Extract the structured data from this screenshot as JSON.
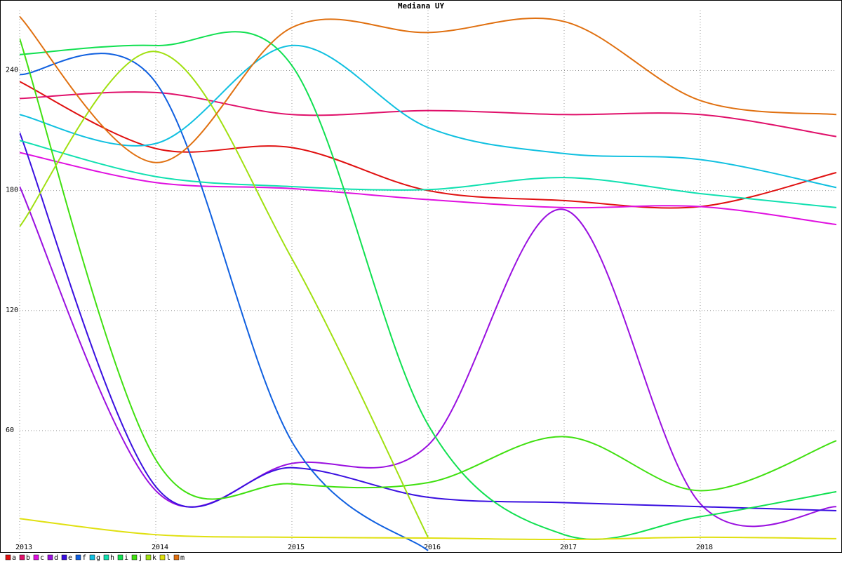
{
  "chart_data": {
    "type": "line",
    "title": "Mediana UY",
    "x": [
      2013,
      2014,
      2015,
      2016,
      2017,
      2018,
      2019
    ],
    "xlim": [
      2013,
      2019
    ],
    "xticks": [
      2013,
      2014,
      2015,
      2016,
      2017,
      2018
    ],
    "ylim": [
      0,
      270
    ],
    "yticks": [
      60,
      120,
      180,
      240
    ],
    "grid": true,
    "legend": "bottom-left",
    "series": [
      {
        "name": "a",
        "color": "#e01010",
        "values": [
          234.5,
          201,
          201.5,
          180,
          175,
          172,
          189
        ]
      },
      {
        "name": "b",
        "color": "#e0106a",
        "values": [
          226,
          229,
          218,
          220,
          218,
          218,
          207
        ]
      },
      {
        "name": "c",
        "color": "#e010e0",
        "values": [
          199,
          184,
          181,
          175.5,
          171.5,
          172,
          163
        ]
      },
      {
        "name": "d",
        "color": "#9a10e0",
        "values": [
          182,
          30,
          43.6,
          52.7,
          170.5,
          23.5,
          22
        ]
      },
      {
        "name": "e",
        "color": "#3a10e0",
        "values": [
          209,
          32,
          41.5,
          26.7,
          24,
          22,
          20
        ]
      },
      {
        "name": "f",
        "color": "#1060e0",
        "values": [
          238,
          234,
          54.5,
          0,
          null,
          null,
          null
        ]
      },
      {
        "name": "g",
        "color": "#10c0e0",
        "values": [
          218,
          203.5,
          252.5,
          211.5,
          198.5,
          195.5,
          181.5
        ]
      },
      {
        "name": "h",
        "color": "#10e0b0",
        "values": [
          205,
          187,
          182,
          180.5,
          186.5,
          178.5,
          171.5
        ]
      },
      {
        "name": "i",
        "color": "#10e050",
        "values": [
          248,
          252.5,
          242.5,
          63,
          8,
          17,
          29.5
        ]
      },
      {
        "name": "j",
        "color": "#40e010",
        "values": [
          256,
          45.5,
          33.4,
          34,
          57,
          30,
          55
        ]
      },
      {
        "name": "k",
        "color": "#a0e010",
        "values": [
          162,
          249.5,
          146,
          6.7,
          null,
          null,
          null
        ]
      },
      {
        "name": "l",
        "color": "#e0e010",
        "values": [
          16,
          8,
          6.7,
          6.3,
          5.6,
          6.7,
          6
        ]
      },
      {
        "name": "m",
        "color": "#e07010",
        "values": [
          267,
          194,
          261.5,
          259,
          264.5,
          225,
          218
        ]
      }
    ]
  }
}
